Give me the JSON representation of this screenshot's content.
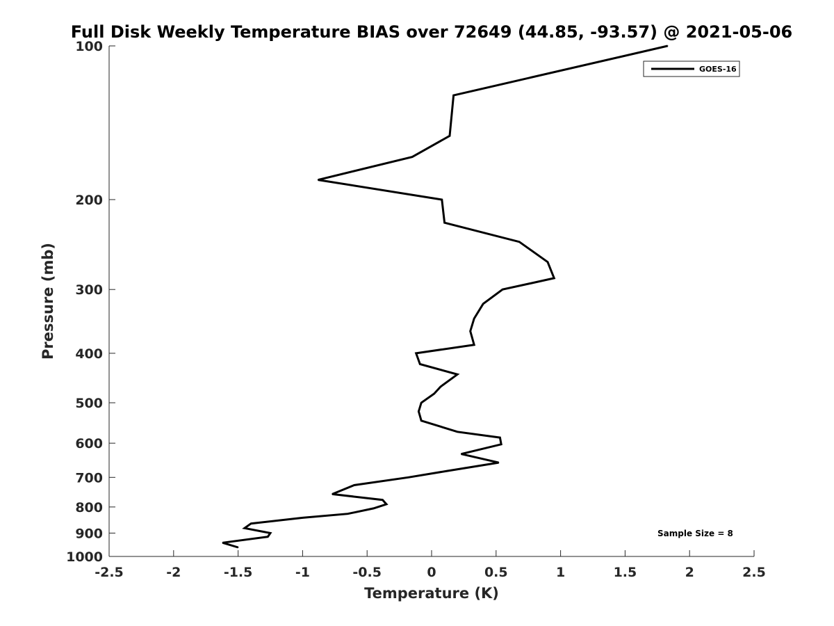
{
  "chart_data": {
    "type": "line",
    "title": "Full Disk Weekly Temperature BIAS over 72649 (44.85, -93.57) @ 2021-05-06",
    "xlabel": "Temperature (K)",
    "ylabel": "Pressure (mb)",
    "xlim": [
      -2.5,
      2.5
    ],
    "ylim": [
      100,
      1000
    ],
    "y_scale": "log",
    "y_reversed": true,
    "grid": false,
    "x_ticks": [
      -2.5,
      -2,
      -1.5,
      -1,
      -0.5,
      0,
      0.5,
      1,
      1.5,
      2,
      2.5
    ],
    "x_tick_labels": [
      "-2.5",
      "-2",
      "-1.5",
      "-1",
      "-0.5",
      "0",
      "0.5",
      "1",
      "1.5",
      "2",
      "2.5"
    ],
    "y_ticks": [
      100,
      200,
      300,
      400,
      500,
      600,
      700,
      800,
      900,
      1000
    ],
    "y_tick_labels": [
      "100",
      "200",
      "300",
      "400",
      "500",
      "600",
      "700",
      "800",
      "900",
      "1000"
    ],
    "legend_position": "top-right",
    "series": [
      {
        "name": "GOES-16",
        "color": "#000000",
        "points": [
          {
            "x": 1.83,
            "y": 100
          },
          {
            "x": 0.17,
            "y": 125
          },
          {
            "x": 0.14,
            "y": 150
          },
          {
            "x": -0.15,
            "y": 165
          },
          {
            "x": -0.88,
            "y": 183
          },
          {
            "x": 0.08,
            "y": 200
          },
          {
            "x": 0.1,
            "y": 222
          },
          {
            "x": 0.68,
            "y": 242
          },
          {
            "x": 0.9,
            "y": 265
          },
          {
            "x": 0.95,
            "y": 285
          },
          {
            "x": 0.55,
            "y": 300
          },
          {
            "x": 0.4,
            "y": 320
          },
          {
            "x": 0.33,
            "y": 342
          },
          {
            "x": 0.3,
            "y": 362
          },
          {
            "x": 0.33,
            "y": 385
          },
          {
            "x": -0.12,
            "y": 400
          },
          {
            "x": -0.09,
            "y": 420
          },
          {
            "x": 0.2,
            "y": 440
          },
          {
            "x": 0.07,
            "y": 465
          },
          {
            "x": 0.02,
            "y": 480
          },
          {
            "x": -0.08,
            "y": 500
          },
          {
            "x": -0.1,
            "y": 520
          },
          {
            "x": -0.08,
            "y": 542
          },
          {
            "x": 0.2,
            "y": 570
          },
          {
            "x": 0.53,
            "y": 585
          },
          {
            "x": 0.54,
            "y": 603
          },
          {
            "x": 0.23,
            "y": 630
          },
          {
            "x": 0.52,
            "y": 655
          },
          {
            "x": 0.12,
            "y": 680
          },
          {
            "x": -0.18,
            "y": 700
          },
          {
            "x": -0.6,
            "y": 725
          },
          {
            "x": -0.77,
            "y": 755
          },
          {
            "x": -0.38,
            "y": 775
          },
          {
            "x": -0.35,
            "y": 790
          },
          {
            "x": -0.45,
            "y": 805
          },
          {
            "x": -0.65,
            "y": 825
          },
          {
            "x": -1.0,
            "y": 840
          },
          {
            "x": -1.4,
            "y": 862
          },
          {
            "x": -1.45,
            "y": 880
          },
          {
            "x": -1.25,
            "y": 900
          },
          {
            "x": -1.27,
            "y": 915
          },
          {
            "x": -1.62,
            "y": 940
          },
          {
            "x": -1.5,
            "y": 960
          }
        ]
      }
    ],
    "annotations": [
      {
        "text": "Sample Size = 8",
        "placement": "bottom-right"
      }
    ]
  }
}
